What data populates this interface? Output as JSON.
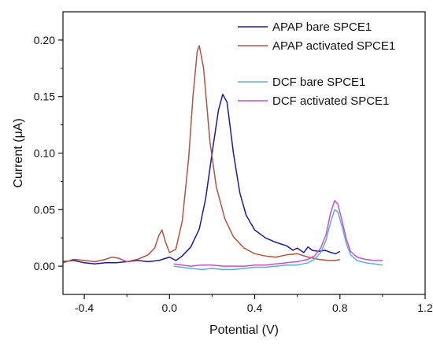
{
  "chart_data": {
    "type": "line",
    "xlabel": "Potential (V)",
    "ylabel": "Current (μA)",
    "xlim": [
      -0.5,
      1.2
    ],
    "ylim": [
      -0.025,
      0.225
    ],
    "x_ticks": [
      -0.4,
      0.0,
      0.4,
      0.8,
      1.2
    ],
    "x_tick_labels": [
      "-0.4",
      "0.0",
      "0.4",
      "0.8",
      "1.2"
    ],
    "y_ticks": [
      0.0,
      0.05,
      0.1,
      0.15,
      0.2
    ],
    "y_tick_labels": [
      "0.00",
      "0.05",
      "0.10",
      "0.15",
      "0.20"
    ],
    "grid": false,
    "legend_position": "top-right",
    "series": [
      {
        "name": "APAP bare SPCE1",
        "color": "#1a1aa8",
        "points": [
          [
            -0.5,
            0.004
          ],
          [
            -0.45,
            0.005
          ],
          [
            -0.4,
            0.003
          ],
          [
            -0.35,
            0.002
          ],
          [
            -0.3,
            0.003
          ],
          [
            -0.25,
            0.003
          ],
          [
            -0.2,
            0.004
          ],
          [
            -0.15,
            0.005
          ],
          [
            -0.1,
            0.004
          ],
          [
            -0.05,
            0.005
          ],
          [
            0.0,
            0.008
          ],
          [
            0.03,
            0.005
          ],
          [
            0.06,
            0.009
          ],
          [
            0.1,
            0.017
          ],
          [
            0.14,
            0.033
          ],
          [
            0.17,
            0.06
          ],
          [
            0.2,
            0.1
          ],
          [
            0.23,
            0.138
          ],
          [
            0.25,
            0.152
          ],
          [
            0.27,
            0.145
          ],
          [
            0.3,
            0.1
          ],
          [
            0.33,
            0.065
          ],
          [
            0.36,
            0.045
          ],
          [
            0.4,
            0.032
          ],
          [
            0.45,
            0.025
          ],
          [
            0.5,
            0.021
          ],
          [
            0.55,
            0.018
          ],
          [
            0.58,
            0.014
          ],
          [
            0.6,
            0.016
          ],
          [
            0.63,
            0.012
          ],
          [
            0.65,
            0.017
          ],
          [
            0.67,
            0.014
          ],
          [
            0.7,
            0.013
          ],
          [
            0.73,
            0.014
          ],
          [
            0.76,
            0.012
          ],
          [
            0.78,
            0.011
          ],
          [
            0.8,
            0.013
          ]
        ]
      },
      {
        "name": "APAP activated SPCE1",
        "color": "#b5533c",
        "points": [
          [
            -0.5,
            0.003
          ],
          [
            -0.45,
            0.006
          ],
          [
            -0.4,
            0.005
          ],
          [
            -0.35,
            0.004
          ],
          [
            -0.3,
            0.006
          ],
          [
            -0.27,
            0.008
          ],
          [
            -0.24,
            0.007
          ],
          [
            -0.2,
            0.004
          ],
          [
            -0.15,
            0.006
          ],
          [
            -0.1,
            0.01
          ],
          [
            -0.07,
            0.016
          ],
          [
            -0.05,
            0.027
          ],
          [
            -0.035,
            0.032
          ],
          [
            -0.02,
            0.022
          ],
          [
            0.0,
            0.012
          ],
          [
            0.03,
            0.015
          ],
          [
            0.06,
            0.04
          ],
          [
            0.09,
            0.095
          ],
          [
            0.11,
            0.15
          ],
          [
            0.13,
            0.19
          ],
          [
            0.14,
            0.195
          ],
          [
            0.16,
            0.175
          ],
          [
            0.19,
            0.11
          ],
          [
            0.22,
            0.07
          ],
          [
            0.26,
            0.042
          ],
          [
            0.3,
            0.026
          ],
          [
            0.35,
            0.016
          ],
          [
            0.4,
            0.011
          ],
          [
            0.45,
            0.009
          ],
          [
            0.5,
            0.008
          ],
          [
            0.55,
            0.01
          ],
          [
            0.6,
            0.011
          ],
          [
            0.65,
            0.008
          ],
          [
            0.7,
            0.006
          ],
          [
            0.75,
            0.005
          ],
          [
            0.78,
            0.005
          ],
          [
            0.8,
            0.006
          ]
        ]
      },
      {
        "name": "DCF bare SPCE1",
        "color": "#5aaee0",
        "points": [
          [
            0.02,
            0.0
          ],
          [
            0.06,
            -0.001
          ],
          [
            0.1,
            -0.002
          ],
          [
            0.15,
            -0.003
          ],
          [
            0.2,
            -0.002
          ],
          [
            0.25,
            -0.003
          ],
          [
            0.3,
            -0.003
          ],
          [
            0.35,
            -0.002
          ],
          [
            0.4,
            -0.001
          ],
          [
            0.45,
            -0.001
          ],
          [
            0.5,
            0.0
          ],
          [
            0.55,
            0.001
          ],
          [
            0.6,
            0.001
          ],
          [
            0.65,
            0.003
          ],
          [
            0.68,
            0.006
          ],
          [
            0.71,
            0.012
          ],
          [
            0.735,
            0.023
          ],
          [
            0.755,
            0.038
          ],
          [
            0.775,
            0.05
          ],
          [
            0.79,
            0.048
          ],
          [
            0.81,
            0.035
          ],
          [
            0.83,
            0.02
          ],
          [
            0.85,
            0.01
          ],
          [
            0.88,
            0.005
          ],
          [
            0.92,
            0.003
          ],
          [
            0.96,
            0.002
          ],
          [
            1.0,
            0.001
          ]
        ]
      },
      {
        "name": "DCF activated SPCE1",
        "color": "#c94fc9",
        "points": [
          [
            0.02,
            0.002
          ],
          [
            0.06,
            0.001
          ],
          [
            0.1,
            0.0
          ],
          [
            0.15,
            0.001
          ],
          [
            0.2,
            0.001
          ],
          [
            0.25,
            0.0
          ],
          [
            0.3,
            0.0
          ],
          [
            0.35,
            0.0
          ],
          [
            0.4,
            0.001
          ],
          [
            0.45,
            0.001
          ],
          [
            0.5,
            0.002
          ],
          [
            0.55,
            0.003
          ],
          [
            0.6,
            0.004
          ],
          [
            0.65,
            0.006
          ],
          [
            0.68,
            0.009
          ],
          [
            0.71,
            0.016
          ],
          [
            0.735,
            0.028
          ],
          [
            0.755,
            0.046
          ],
          [
            0.775,
            0.058
          ],
          [
            0.79,
            0.055
          ],
          [
            0.81,
            0.04
          ],
          [
            0.83,
            0.024
          ],
          [
            0.85,
            0.013
          ],
          [
            0.88,
            0.008
          ],
          [
            0.92,
            0.006
          ],
          [
            0.96,
            0.005
          ],
          [
            1.0,
            0.005
          ]
        ]
      }
    ]
  }
}
